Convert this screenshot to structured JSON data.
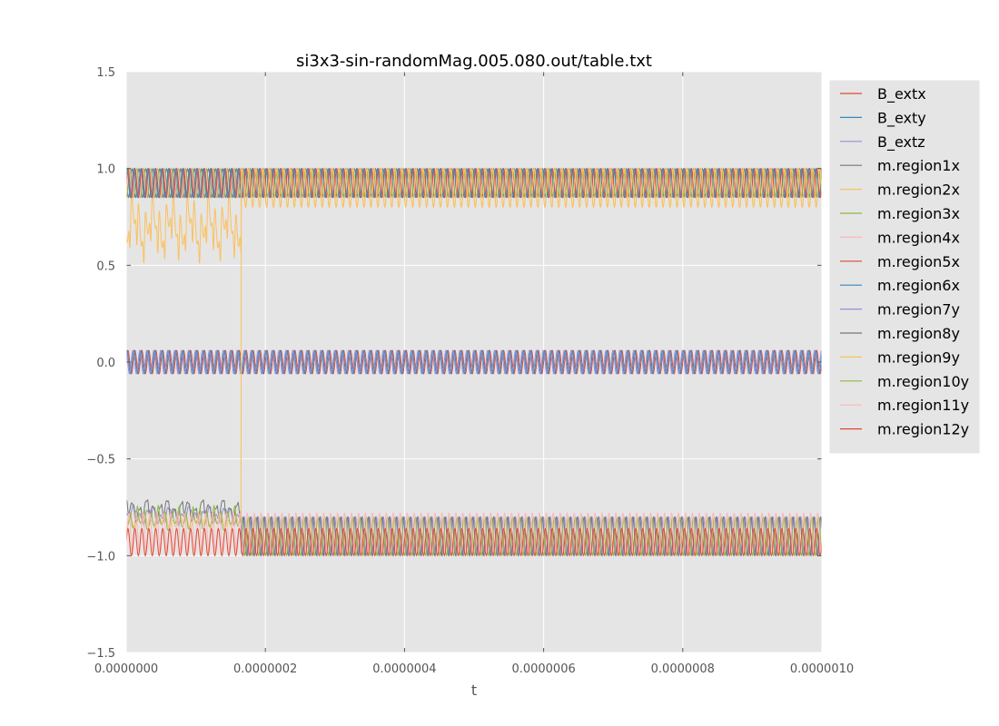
{
  "chart_data": {
    "type": "line",
    "title": "si3x3-sin-randomMag.005.080.out/table.txt",
    "xlabel": "t",
    "ylabel": "",
    "xlim": [
      0,
      1e-06
    ],
    "ylim": [
      -1.5,
      1.5
    ],
    "x_ticks": [
      "0.0000000",
      "0.0000002",
      "0.0000004",
      "0.0000006",
      "0.0000008",
      "0.0000010"
    ],
    "y_ticks": [
      "−1.5",
      "−1.0",
      "−0.5",
      "0.0",
      "0.5",
      "1.0",
      "1.5"
    ],
    "grid": true,
    "legend_position": "outside-right",
    "background": "#e5e5e5",
    "approx_oscillation_periods": 100,
    "transition_time": 1.65e-07,
    "series": [
      {
        "name": "B_extx",
        "color": "#e24a33",
        "oscillates_between": [
          -0.06,
          0.06
        ]
      },
      {
        "name": "B_exty",
        "color": "#348abd",
        "oscillates_between": [
          -0.06,
          0.06
        ]
      },
      {
        "name": "B_extz",
        "color": "#988ed5",
        "oscillates_between": [
          -0.06,
          0.06
        ]
      },
      {
        "name": "m.region1x",
        "color": "#777777",
        "oscillates_between": [
          0.85,
          1.0
        ]
      },
      {
        "name": "m.region2x",
        "color": "#fbc15e",
        "oscillates_between": [
          0.8,
          1.0
        ],
        "early_range": [
          0.55,
          0.95
        ]
      },
      {
        "name": "m.region3x",
        "color": "#8eba42",
        "oscillates_between": [
          0.85,
          1.0
        ]
      },
      {
        "name": "m.region4x",
        "color": "#ffb5b8",
        "oscillates_between": [
          0.85,
          1.0
        ]
      },
      {
        "name": "m.region5x",
        "color": "#e24a33",
        "oscillates_between": [
          0.85,
          1.0
        ]
      },
      {
        "name": "m.region6x",
        "color": "#348abd",
        "oscillates_between": [
          0.85,
          1.0
        ]
      },
      {
        "name": "m.region7y",
        "color": "#988ed5",
        "oscillates_between": [
          -1.0,
          -0.8
        ],
        "early_range": [
          -0.87,
          -0.73
        ]
      },
      {
        "name": "m.region8y",
        "color": "#777777",
        "oscillates_between": [
          -1.0,
          -0.8
        ],
        "early_range": [
          -0.85,
          -0.7
        ]
      },
      {
        "name": "m.region9y",
        "color": "#fbc15e",
        "oscillates_between": [
          -1.0,
          -0.8
        ],
        "early_range": [
          -0.9,
          -0.75
        ],
        "jump_to_upper_band_at": 1.65e-07
      },
      {
        "name": "m.region10y",
        "color": "#8eba42",
        "oscillates_between": [
          -1.0,
          -0.8
        ],
        "early_range": [
          -0.88,
          -0.76
        ]
      },
      {
        "name": "m.region11y",
        "color": "#ffb5b8",
        "oscillates_between": [
          -0.98,
          -0.78
        ]
      },
      {
        "name": "m.region12y",
        "color": "#e24a33",
        "oscillates_between": [
          -1.0,
          -0.86
        ]
      }
    ]
  }
}
